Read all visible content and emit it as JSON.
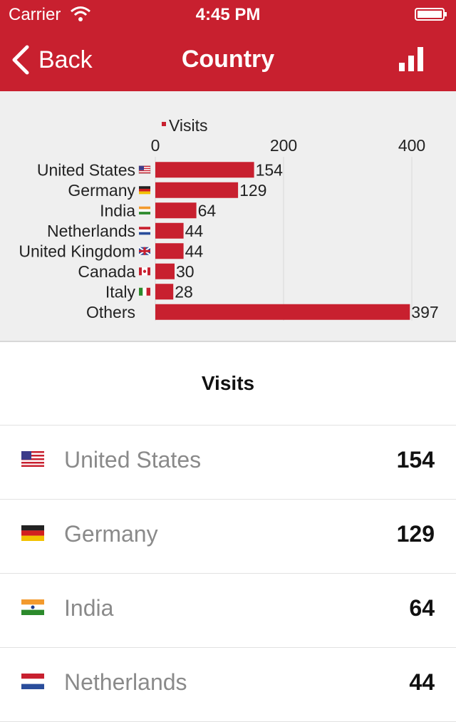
{
  "status_bar": {
    "carrier": "Carrier",
    "time": "4:45 PM"
  },
  "nav": {
    "back_label": "Back",
    "title": "Country"
  },
  "chart_data": {
    "type": "bar",
    "orientation": "horizontal",
    "categories": [
      "United States",
      "Germany",
      "India",
      "Netherlands",
      "United Kingdom",
      "Canada",
      "Italy",
      "Others"
    ],
    "series": [
      {
        "name": "Visits",
        "values": [
          154,
          129,
          64,
          44,
          44,
          30,
          28,
          397
        ]
      }
    ],
    "x_ticks": [
      "0",
      "200",
      "400"
    ],
    "xlim": [
      0,
      400
    ],
    "legend_position": "top",
    "bar_color": "#c8202f",
    "grid": true
  },
  "table": {
    "header": "Visits",
    "rows": [
      {
        "name": "United States",
        "value": "154",
        "flag": "us-flag-icon"
      },
      {
        "name": "Germany",
        "value": "129",
        "flag": "de-flag-icon"
      },
      {
        "name": "India",
        "value": "64",
        "flag": "in-flag-icon"
      },
      {
        "name": "Netherlands",
        "value": "44",
        "flag": "nl-flag-icon"
      }
    ]
  }
}
